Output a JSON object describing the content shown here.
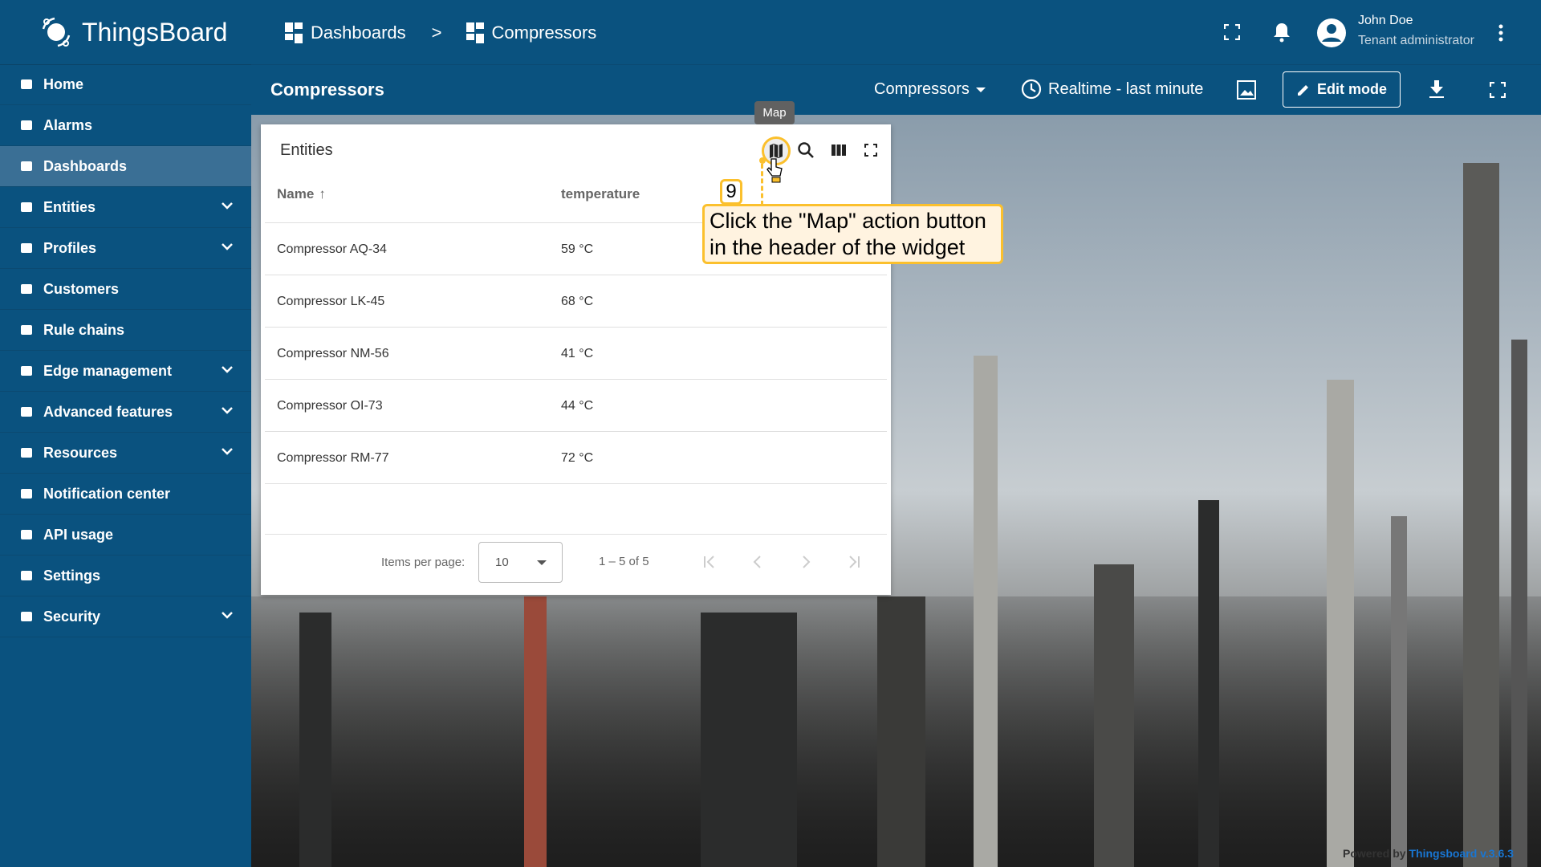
{
  "app": {
    "name": "ThingsBoard"
  },
  "sidebar": {
    "items": [
      {
        "label": "Home",
        "icon": "home-icon",
        "expandable": false
      },
      {
        "label": "Alarms",
        "icon": "warning-icon",
        "expandable": false
      },
      {
        "label": "Dashboards",
        "icon": "dashboard-icon",
        "expandable": false,
        "active": true
      },
      {
        "label": "Entities",
        "icon": "entities-icon",
        "expandable": true
      },
      {
        "label": "Profiles",
        "icon": "profiles-icon",
        "expandable": true
      },
      {
        "label": "Customers",
        "icon": "customers-icon",
        "expandable": false
      },
      {
        "label": "Rule chains",
        "icon": "rule-chains-icon",
        "expandable": false
      },
      {
        "label": "Edge management",
        "icon": "edge-icon",
        "expandable": true
      },
      {
        "label": "Advanced features",
        "icon": "tools-icon",
        "expandable": true
      },
      {
        "label": "Resources",
        "icon": "folder-icon",
        "expandable": true
      },
      {
        "label": "Notification center",
        "icon": "notification-icon",
        "expandable": false
      },
      {
        "label": "API usage",
        "icon": "chart-icon",
        "expandable": false
      },
      {
        "label": "Settings",
        "icon": "gear-icon",
        "expandable": false
      },
      {
        "label": "Security",
        "icon": "shield-icon",
        "expandable": true
      }
    ]
  },
  "header": {
    "breadcrumb": [
      "Dashboards",
      "Compressors"
    ],
    "separator": ">",
    "user": {
      "name": "John Doe",
      "role": "Tenant administrator"
    }
  },
  "toolbar": {
    "title": "Compressors",
    "state_select": "Compressors",
    "timewindow": "Realtime - last minute",
    "edit_mode": "Edit mode"
  },
  "widget": {
    "title": "Entities",
    "tooltip": "Map",
    "columns": [
      "Name",
      "temperature"
    ],
    "rows": [
      {
        "name": "Compressor AQ-34",
        "temperature": "59 °C"
      },
      {
        "name": "Compressor LK-45",
        "temperature": "68 °C"
      },
      {
        "name": "Compressor NM-56",
        "temperature": "41 °C"
      },
      {
        "name": "Compressor OI-73",
        "temperature": "44 °C"
      },
      {
        "name": "Compressor RM-77",
        "temperature": "72 °C"
      }
    ],
    "paginator": {
      "items_per_page_label": "Items per page:",
      "items_per_page": "10",
      "range": "1 – 5 of 5"
    }
  },
  "callout": {
    "step": "9",
    "text": "Click the \"Map\" action button in the header of the widget",
    "color": "#fbc02d"
  },
  "footer": {
    "powered_by": "Powered by",
    "version": "Thingsboard v.3.6.3"
  },
  "colors": {
    "primary": "#0a527f",
    "active": "#3a6f95",
    "link": "#1976d2"
  }
}
